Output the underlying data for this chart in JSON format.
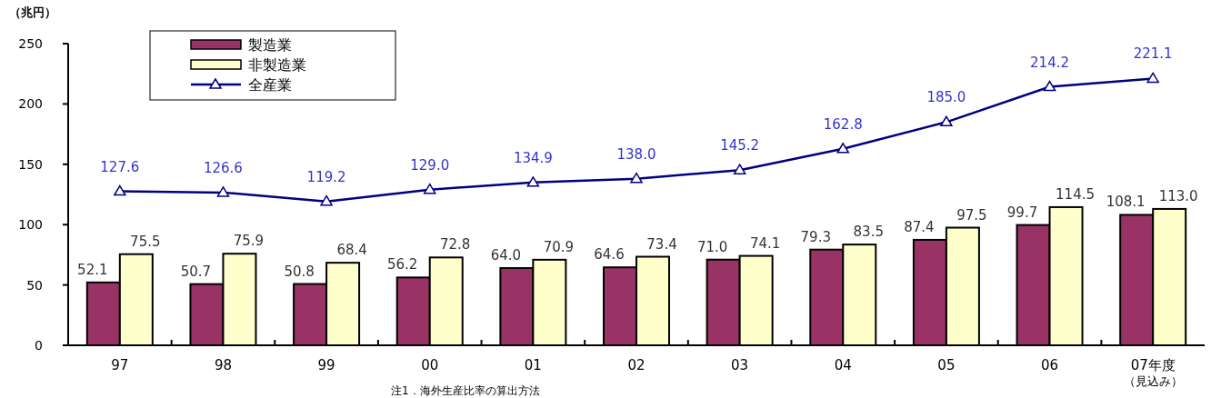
{
  "chart_data": {
    "type": "bar",
    "ylabel": "（兆円）",
    "categories": [
      "97",
      "98",
      "99",
      "00",
      "01",
      "02",
      "03",
      "04",
      "05",
      "06",
      "07年度（見込み）"
    ],
    "series": [
      {
        "name": "製造業",
        "color": "#993366",
        "values": [
          52.1,
          50.7,
          50.8,
          56.2,
          64.0,
          64.6,
          71.0,
          79.3,
          87.4,
          99.7,
          108.1
        ],
        "value_labels": [
          "52.1",
          "50.7",
          "50.8",
          "56.2",
          "64.0",
          "64.6",
          "71.0",
          "79.3",
          "87.4",
          "99.7",
          "108.1"
        ]
      },
      {
        "name": "非製造業",
        "color": "#ffffcc",
        "values": [
          75.5,
          75.9,
          68.4,
          72.8,
          70.9,
          73.4,
          74.1,
          83.5,
          97.5,
          114.5,
          113.0
        ],
        "value_labels": [
          "75.5",
          "75.9",
          "68.4",
          "72.8",
          "70.9",
          "73.4",
          "74.1",
          "83.5",
          "97.5",
          "114.5",
          "113.0"
        ]
      },
      {
        "name": "全産業",
        "type": "line",
        "color": "#000080",
        "marker": "triangle",
        "values": [
          127.6,
          126.6,
          119.2,
          129.0,
          134.9,
          138.0,
          145.2,
          162.8,
          185.0,
          214.2,
          221.1
        ],
        "value_labels": [
          "127.6",
          "126.6",
          "119.2",
          "129.0",
          "134.9",
          "138.0",
          "145.2",
          "162.8",
          "185.0",
          "214.2",
          "221.1"
        ]
      }
    ],
    "ylim": [
      0,
      250
    ],
    "yticks": [
      0,
      50,
      100,
      150,
      200,
      250
    ],
    "legend": "top left",
    "annotations": [
      "注1．海外生産比率の算出方法"
    ]
  }
}
